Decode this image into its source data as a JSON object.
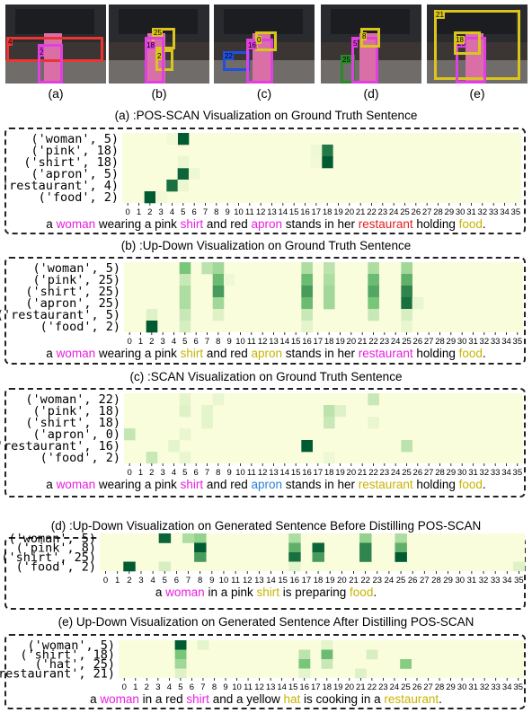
{
  "colors": {
    "magenta": "#e81ee0",
    "red": "#e02020",
    "yellow": "#c8b400",
    "blue": "#2a7fd4",
    "box_red": "#e33",
    "box_magenta": "#e040e0",
    "box_yellow": "#d9c51d",
    "box_blue": "#2050e0",
    "box_green": "#2a8a2a"
  },
  "thumbnails": [
    {
      "caption": "(a)",
      "tags": [
        "4",
        "5",
        "2"
      ],
      "boxes": [
        [
          "box_red",
          1,
          36,
          108,
          28
        ],
        [
          "box_magenta",
          36,
          44,
          28,
          44
        ]
      ]
    },
    {
      "caption": "(b)",
      "tags": [
        "25",
        "2",
        "18"
      ],
      "boxes": [
        [
          "box_yellow",
          48,
          26,
          26,
          24
        ],
        [
          "box_yellow",
          52,
          50,
          20,
          24
        ],
        [
          "box_magenta",
          40,
          36,
          22,
          52
        ]
      ]
    },
    {
      "caption": "(c)",
      "tags": [
        "22",
        "16",
        "0"
      ],
      "boxes": [
        [
          "box_blue",
          10,
          52,
          30,
          22
        ],
        [
          "box_magenta",
          36,
          38,
          30,
          50
        ],
        [
          "box_yellow",
          46,
          30,
          24,
          22
        ]
      ]
    },
    {
      "caption": "(d)",
      "tags": [
        "25",
        "5",
        "8"
      ],
      "boxes": [
        [
          "box_green",
          22,
          56,
          16,
          32
        ],
        [
          "box_magenta",
          34,
          36,
          30,
          52
        ],
        [
          "box_yellow",
          44,
          26,
          22,
          22
        ]
      ]
    },
    {
      "caption": "(e)",
      "tags": [
        "21",
        "25",
        "18"
      ],
      "boxes": [
        [
          "box_yellow",
          8,
          6,
          96,
          78
        ],
        [
          "box_magenta",
          32,
          36,
          34,
          52
        ],
        [
          "box_yellow",
          30,
          30,
          30,
          26
        ]
      ]
    }
  ],
  "x_ticks": [
    "0",
    "1",
    "2",
    "3",
    "4",
    "5",
    "6",
    "7",
    "8",
    "9",
    "10",
    "11",
    "12",
    "13",
    "14",
    "15",
    "16",
    "17",
    "18",
    "19",
    "20",
    "21",
    "22",
    "23",
    "24",
    "25",
    "26",
    "27",
    "28",
    "29",
    "30",
    "31",
    "32",
    "33",
    "34",
    "35"
  ],
  "panels": [
    {
      "title": "(a) :POS-SCAN Visualization on Ground Truth  Sentence",
      "rows": [
        "('woman', 5)",
        "('pink', 18)",
        "('shirt', 18)",
        "('apron', 5)",
        "('restaurant', 4)",
        "('food', 2)"
      ],
      "cells": [
        [
          0,
          5,
          1.0
        ],
        [
          1,
          18,
          0.85
        ],
        [
          2,
          18,
          1.0
        ],
        [
          3,
          5,
          0.95
        ],
        [
          4,
          4,
          0.9
        ],
        [
          5,
          2,
          1.0
        ],
        [
          1,
          17,
          0.06
        ],
        [
          2,
          17,
          0.05
        ],
        [
          3,
          6,
          0.06
        ],
        [
          4,
          5,
          0.07
        ],
        [
          5,
          3,
          0.05
        ],
        [
          0,
          4,
          0.05
        ],
        [
          2,
          5,
          0.07
        ]
      ],
      "sentence": [
        [
          "a ",
          ""
        ],
        [
          "woman",
          "magenta"
        ],
        [
          " wearing a pink ",
          ""
        ],
        [
          "shirt",
          "magenta"
        ],
        [
          " and red ",
          ""
        ],
        [
          "apron",
          "magenta"
        ],
        [
          " stands in her ",
          ""
        ],
        [
          "restaurant",
          "red"
        ],
        [
          " holding ",
          ""
        ],
        [
          "food",
          "yellow"
        ],
        [
          ".",
          ""
        ]
      ]
    },
    {
      "title": "(b) :Up-Down Visualization on Ground Truth Sentence",
      "rows": [
        "('woman', 5)",
        "('pink', 25)",
        "('shirt', 25)",
        "('apron', 25)",
        "('restaurant', 5)",
        "('food', 2)"
      ],
      "cells": [
        [
          0,
          5,
          0.5
        ],
        [
          0,
          7,
          0.25
        ],
        [
          0,
          8,
          0.35
        ],
        [
          0,
          16,
          0.3
        ],
        [
          0,
          18,
          0.25
        ],
        [
          0,
          22,
          0.3
        ],
        [
          0,
          25,
          0.35
        ],
        [
          1,
          5,
          0.2
        ],
        [
          1,
          8,
          0.55
        ],
        [
          1,
          16,
          0.55
        ],
        [
          1,
          18,
          0.3
        ],
        [
          1,
          22,
          0.55
        ],
        [
          1,
          25,
          0.6
        ],
        [
          2,
          5,
          0.3
        ],
        [
          2,
          8,
          0.7
        ],
        [
          2,
          16,
          0.7
        ],
        [
          2,
          18,
          0.35
        ],
        [
          2,
          22,
          0.65
        ],
        [
          2,
          25,
          0.8
        ],
        [
          3,
          5,
          0.3
        ],
        [
          3,
          8,
          0.35
        ],
        [
          3,
          16,
          0.55
        ],
        [
          3,
          18,
          0.35
        ],
        [
          3,
          22,
          0.5
        ],
        [
          3,
          25,
          0.9
        ],
        [
          4,
          2,
          0.12
        ],
        [
          4,
          5,
          0.2
        ],
        [
          4,
          8,
          0.12
        ],
        [
          4,
          16,
          0.2
        ],
        [
          4,
          22,
          0.2
        ],
        [
          4,
          25,
          0.15
        ],
        [
          5,
          2,
          1.0
        ],
        [
          5,
          5,
          0.15
        ],
        [
          5,
          16,
          0.1
        ],
        [
          5,
          25,
          0.08
        ],
        [
          3,
          26,
          0.08
        ],
        [
          1,
          9,
          0.06
        ]
      ],
      "sentence": [
        [
          "a ",
          ""
        ],
        [
          "woman",
          "magenta"
        ],
        [
          " wearing a pink ",
          ""
        ],
        [
          "shirt",
          "yellow"
        ],
        [
          " and red ",
          ""
        ],
        [
          "apron",
          "yellow"
        ],
        [
          " stands in her ",
          ""
        ],
        [
          "restaurant",
          "magenta"
        ],
        [
          " holding ",
          ""
        ],
        [
          "food",
          "yellow"
        ],
        [
          ".",
          ""
        ]
      ]
    },
    {
      "title": "(c) :SCAN Visualization on Ground Truth Sentence",
      "rows": [
        "('woman', 22)",
        "('pink', 18)",
        "('shirt', 18)",
        "('apron', 0)",
        "('restaurant', 16)",
        "('food', 2)"
      ],
      "cells": [
        [
          0,
          22,
          0.2
        ],
        [
          0,
          5,
          0.1
        ],
        [
          0,
          8,
          0.08
        ],
        [
          1,
          18,
          0.25
        ],
        [
          1,
          5,
          0.12
        ],
        [
          1,
          7,
          0.1
        ],
        [
          1,
          19,
          0.12
        ],
        [
          2,
          18,
          0.2
        ],
        [
          2,
          7,
          0.1
        ],
        [
          2,
          22,
          0.08
        ],
        [
          3,
          0,
          0.22
        ],
        [
          3,
          5,
          0.08
        ],
        [
          4,
          16,
          1.0
        ],
        [
          4,
          25,
          0.25
        ],
        [
          4,
          4,
          0.1
        ],
        [
          5,
          2,
          0.2
        ],
        [
          5,
          5,
          0.08
        ],
        [
          5,
          18,
          0.06
        ]
      ],
      "sentence": [
        [
          "a ",
          ""
        ],
        [
          "woman",
          "magenta"
        ],
        [
          " wearing a pink ",
          ""
        ],
        [
          "shirt",
          "magenta"
        ],
        [
          " and red ",
          ""
        ],
        [
          "apron",
          "blue"
        ],
        [
          " stands in her ",
          ""
        ],
        [
          "restaurant",
          "yellow"
        ],
        [
          " holding ",
          ""
        ],
        [
          "food",
          "yellow"
        ],
        [
          ".",
          ""
        ]
      ]
    },
    {
      "title": "(d) :Up-Down Visualization on Generated Sentence Before Distilling POS-SCAN",
      "rows": [
        "('woman', 5)",
        "('pink', 8)",
        "('shirt', 25)",
        "('food', 2)"
      ],
      "cells": [
        [
          0,
          5,
          0.95
        ],
        [
          0,
          7,
          0.3
        ],
        [
          0,
          8,
          0.4
        ],
        [
          0,
          16,
          0.3
        ],
        [
          0,
          22,
          0.4
        ],
        [
          0,
          25,
          0.3
        ],
        [
          1,
          8,
          1.0
        ],
        [
          1,
          16,
          0.6
        ],
        [
          1,
          18,
          0.95
        ],
        [
          1,
          22,
          0.8
        ],
        [
          1,
          25,
          0.6
        ],
        [
          2,
          8,
          0.7
        ],
        [
          2,
          16,
          0.9
        ],
        [
          2,
          18,
          0.7
        ],
        [
          2,
          22,
          0.8
        ],
        [
          2,
          25,
          1.0
        ],
        [
          3,
          2,
          1.0
        ],
        [
          3,
          5,
          0.15
        ],
        [
          3,
          35,
          0.12
        ],
        [
          3,
          16,
          0.1
        ]
      ],
      "sentence": [
        [
          "a ",
          ""
        ],
        [
          "woman",
          "magenta"
        ],
        [
          " in a pink ",
          ""
        ],
        [
          "shirt",
          "yellow"
        ],
        [
          " is preparing ",
          ""
        ],
        [
          "food",
          "yellow"
        ],
        [
          ".",
          ""
        ]
      ]
    },
    {
      "title": "(e) Up-Down Visualization on Generated Sentence After Distilling POS-SCAN",
      "rows": [
        "('woman', 5)",
        "('shirt', 18)",
        "('hat', 25)",
        "('restaurant', 21)"
      ],
      "cells": [
        [
          0,
          5,
          1.0
        ],
        [
          0,
          7,
          0.1
        ],
        [
          0,
          18,
          0.1
        ],
        [
          1,
          5,
          0.5
        ],
        [
          1,
          16,
          0.25
        ],
        [
          1,
          18,
          0.55
        ],
        [
          1,
          22,
          0.15
        ],
        [
          2,
          5,
          0.35
        ],
        [
          2,
          16,
          0.5
        ],
        [
          2,
          18,
          0.2
        ],
        [
          2,
          25,
          0.45
        ],
        [
          3,
          5,
          0.12
        ],
        [
          3,
          16,
          0.1
        ],
        [
          3,
          21,
          0.12
        ]
      ],
      "sentence": [
        [
          "a ",
          ""
        ],
        [
          "woman",
          "magenta"
        ],
        [
          " in a red ",
          ""
        ],
        [
          "shirt",
          "magenta"
        ],
        [
          " and a yellow ",
          ""
        ],
        [
          "hat",
          "yellow"
        ],
        [
          "  is cooking in a ",
          ""
        ],
        [
          "restaurant",
          "yellow"
        ],
        [
          ".",
          ""
        ]
      ]
    }
  ]
}
